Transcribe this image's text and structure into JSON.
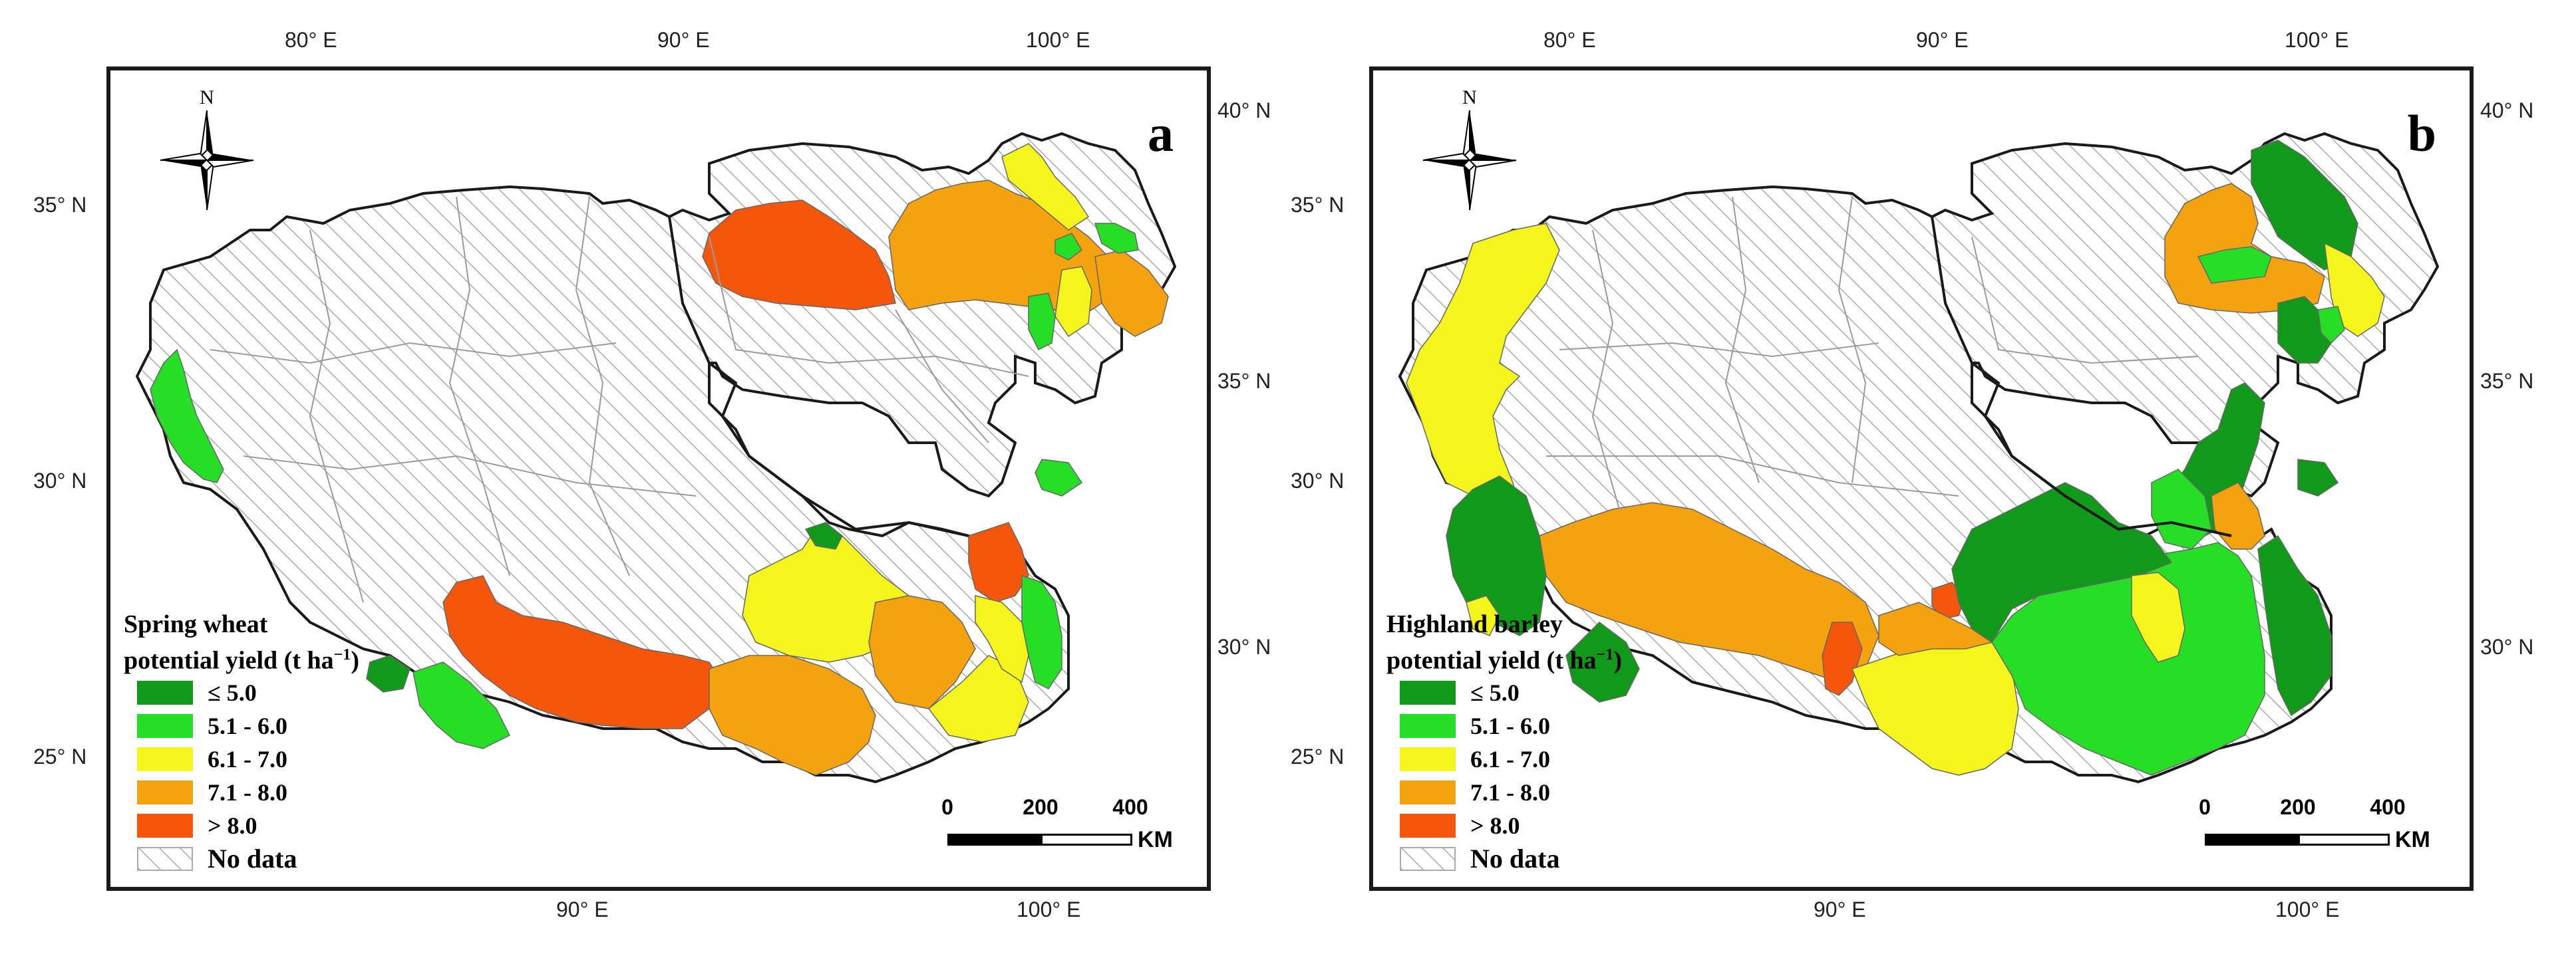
{
  "colors": {
    "class_le5": "#119a19",
    "class_5_6": "#27de27",
    "class_6_7": "#f5f51e",
    "class_7_8": "#f4a20e",
    "class_gt8": "#f4570c",
    "no_data_hatch": "#9a9a9a",
    "boundary": "#1a1a1a"
  },
  "axes": {
    "top_lon": [
      "80° E",
      "90° E",
      "100° E"
    ],
    "bottom_lon": [
      "90° E",
      "100° E"
    ],
    "left_lat": [
      "35° N",
      "30° N",
      "25° N"
    ],
    "right_lat": [
      "40° N",
      "35° N",
      "30° N"
    ]
  },
  "panels": [
    {
      "letter": "a",
      "legend_title_line1": "Spring wheat",
      "legend_title_line2": "potential yield (t ha",
      "legend_unit_sup": "−1",
      "legend_unit_close": ")"
    },
    {
      "letter": "b",
      "legend_title_line1": "Highland barley",
      "legend_title_line2": "potential yield (t ha",
      "legend_unit_sup": "−1",
      "legend_unit_close": ")"
    }
  ],
  "legend_classes": [
    {
      "label": "≤ 5.0",
      "color": "#119a19"
    },
    {
      "label": "5.1 - 6.0",
      "color": "#27de27"
    },
    {
      "label": "6.1 - 7.0",
      "color": "#f5f51e"
    },
    {
      "label": "7.1 - 8.0",
      "color": "#f4a20e"
    },
    {
      "label": "> 8.0",
      "color": "#f4570c"
    }
  ],
  "no_data_label": "No data",
  "scalebar": {
    "ticks": [
      "0",
      "200",
      "400"
    ],
    "unit": "KM"
  },
  "north_label": "N"
}
